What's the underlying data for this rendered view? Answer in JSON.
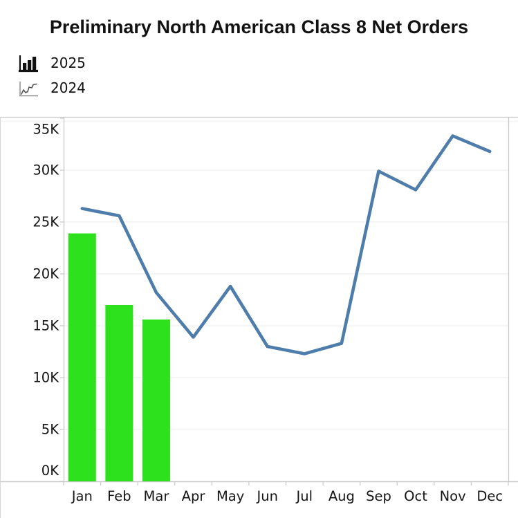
{
  "title": "Preliminary North American Class 8 Net Orders",
  "legend": {
    "items": [
      {
        "label": "2025",
        "icon": "bar-chart-icon",
        "marker": "green-bars"
      },
      {
        "label": "2024",
        "icon": "line-chart-icon",
        "marker": "blue-line"
      }
    ]
  },
  "chart_data": {
    "type": "bar",
    "subtype": "combo-bar-and-line",
    "title": "Preliminary North American Class 8 Net Orders",
    "unit": "thousands of net orders",
    "categories": [
      "Jan",
      "Feb",
      "Mar",
      "Apr",
      "May",
      "Jun",
      "Jul",
      "Aug",
      "Sep",
      "Oct",
      "Nov",
      "Dec"
    ],
    "series": [
      {
        "name": "2025",
        "type": "bar",
        "color": "#2de11c",
        "values_thousands": [
          23.9,
          17.0,
          15.6,
          null,
          null,
          null,
          null,
          null,
          null,
          null,
          null,
          null
        ]
      },
      {
        "name": "2024",
        "type": "line",
        "color": "#4e7dab",
        "values_thousands": [
          26.3,
          25.6,
          18.2,
          13.9,
          18.8,
          13.0,
          12.3,
          13.3,
          29.9,
          28.1,
          33.3,
          31.8
        ]
      }
    ],
    "ylim_thousands": [
      0,
      35
    ],
    "ytick_labels": [
      "0K",
      "5K",
      "10K",
      "15K",
      "20K",
      "25K",
      "30K",
      "35K"
    ],
    "xlabel": "",
    "ylabel": "",
    "grid": true,
    "legend_position": "top-left",
    "colors": {
      "bar_green": "#2de11c",
      "line_blue": "#4e7dab",
      "axis_border": "#c9c9c9",
      "gridline": "#efefef",
      "text": "#151515"
    }
  }
}
